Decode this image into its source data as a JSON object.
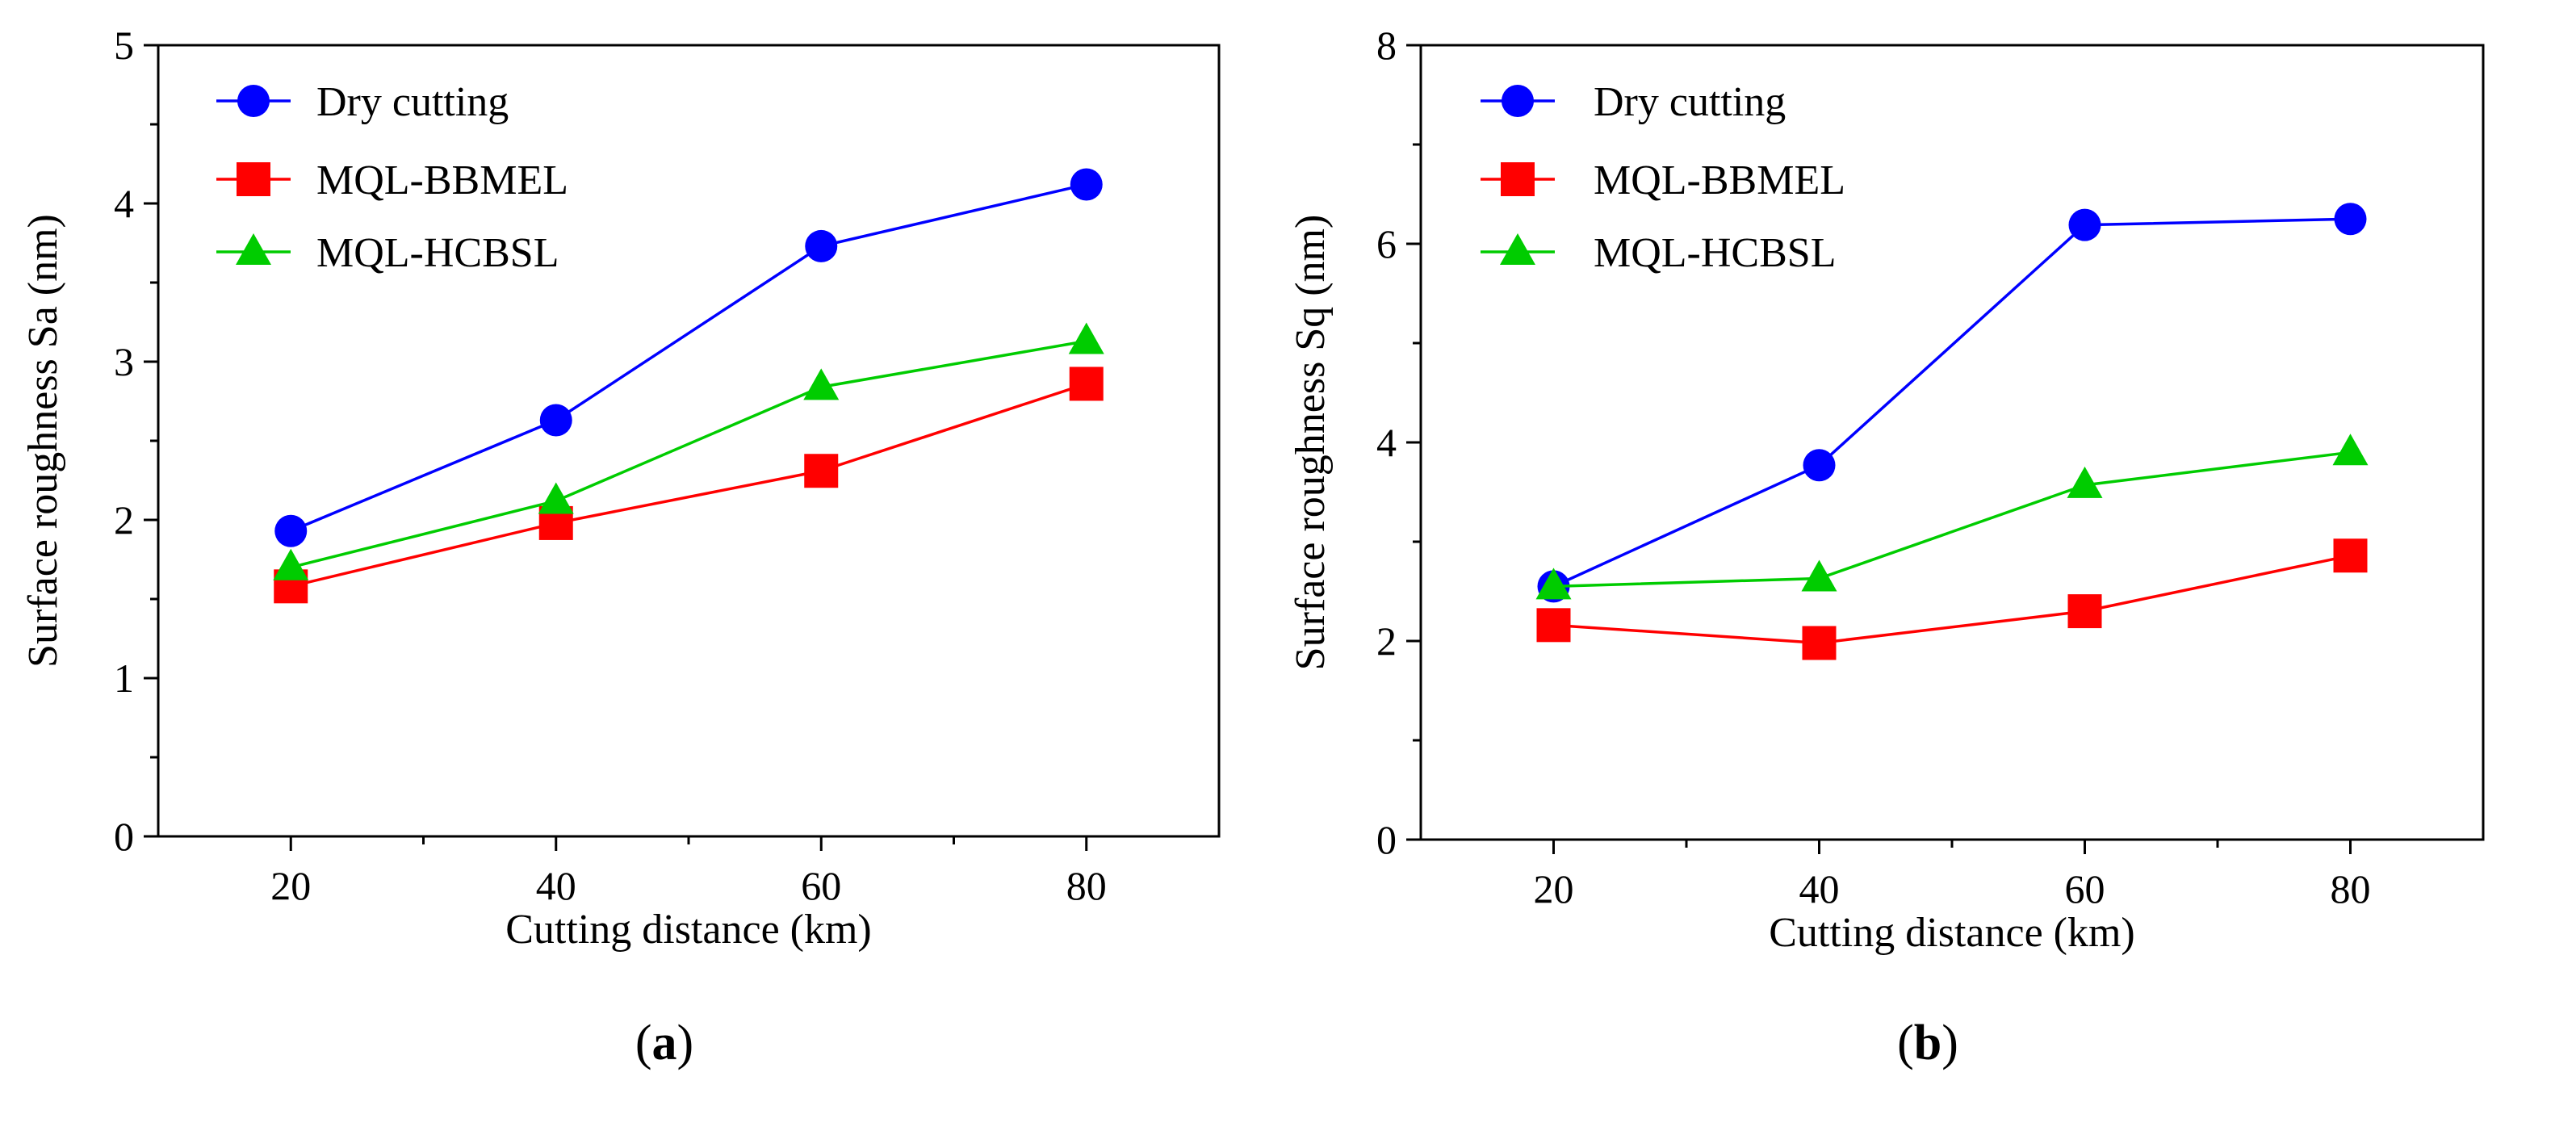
{
  "chart_data": [
    {
      "id": "a",
      "type": "line",
      "caption_open": "(",
      "caption_letter": "a",
      "caption_close": ")",
      "title": "",
      "xlabel": "Cutting distance (km)",
      "ylabel": "Surface roughness Sa (nm)",
      "x": [
        20,
        40,
        60,
        80
      ],
      "xlim": [
        10,
        90
      ],
      "ylim": [
        0,
        5
      ],
      "xticks": [
        20,
        40,
        60,
        80
      ],
      "yticks": [
        0,
        1,
        2,
        3,
        4,
        5
      ],
      "grid": false,
      "legend_position": "top-left",
      "series": [
        {
          "name": "Dry cutting",
          "color": "#0000ff",
          "marker": "circle",
          "values": [
            1.93,
            2.63,
            3.73,
            4.12
          ]
        },
        {
          "name": "MQL-BBMEL",
          "color": "#ff0000",
          "marker": "square",
          "values": [
            1.58,
            1.98,
            2.31,
            2.86
          ]
        },
        {
          "name": "MQL-HCBSL",
          "color": "#00cc00",
          "marker": "triangle",
          "values": [
            1.7,
            2.12,
            2.84,
            3.13
          ]
        }
      ]
    },
    {
      "id": "b",
      "type": "line",
      "caption_open": "(",
      "caption_letter": "b",
      "caption_close": ")",
      "title": "",
      "xlabel": "Cutting distance (km)",
      "ylabel": "Surface roughness Sq (nm)",
      "x": [
        20,
        40,
        60,
        80
      ],
      "xlim": [
        10,
        90
      ],
      "ylim": [
        0,
        8
      ],
      "xticks": [
        20,
        40,
        60,
        80
      ],
      "yticks": [
        0,
        2,
        4,
        6,
        8
      ],
      "grid": false,
      "legend_position": "top-left",
      "series": [
        {
          "name": "Dry cutting",
          "color": "#0000ff",
          "marker": "circle",
          "values": [
            2.55,
            3.77,
            6.19,
            6.25
          ]
        },
        {
          "name": "MQL-BBMEL",
          "color": "#ff0000",
          "marker": "square",
          "values": [
            2.16,
            1.98,
            2.3,
            2.86
          ]
        },
        {
          "name": "MQL-HCBSL",
          "color": "#00cc00",
          "marker": "triangle",
          "values": [
            2.55,
            2.63,
            3.57,
            3.9
          ]
        }
      ]
    }
  ]
}
